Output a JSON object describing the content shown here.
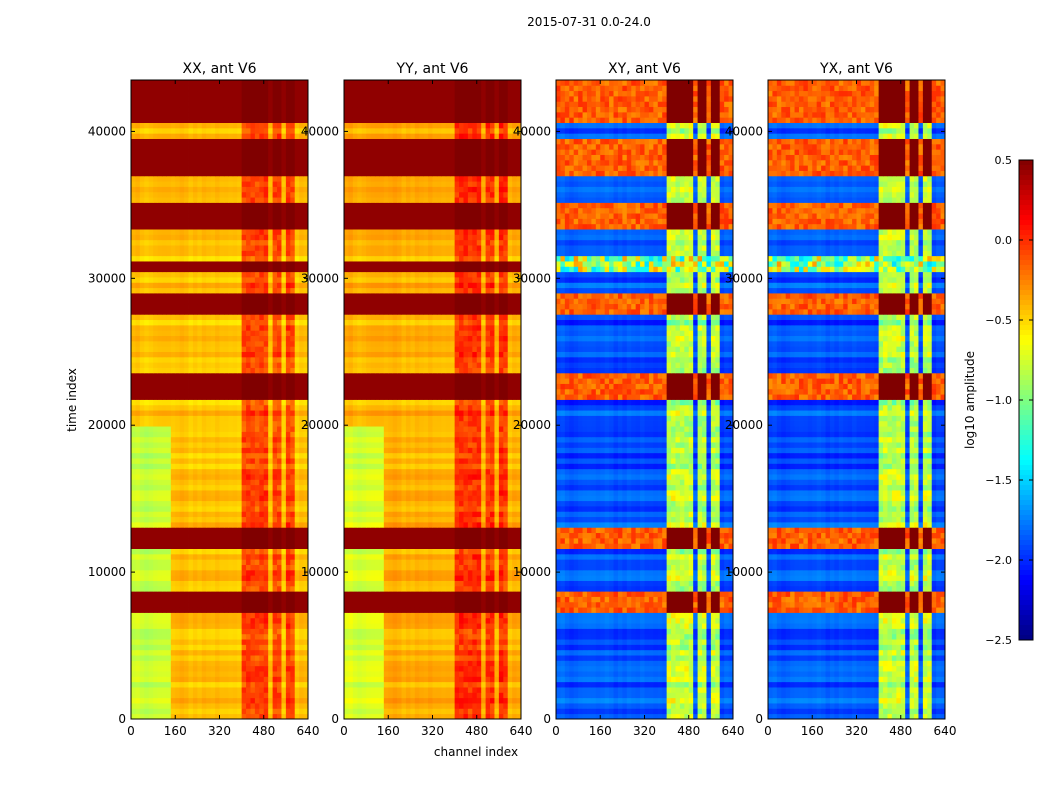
{
  "figure": {
    "suptitle": "2015-07-31 0.0-24.0"
  },
  "chart_data": {
    "type": "heatmap",
    "title": "2015-07-31 0.0-24.0",
    "xlabel": "channel index",
    "ylabel": "time index",
    "x_range": [
      0,
      640
    ],
    "y_range": [
      0,
      43500
    ],
    "x_ticks": [
      0,
      160,
      320,
      480,
      640
    ],
    "y_ticks": [
      0,
      10000,
      20000,
      30000,
      40000
    ],
    "x_tick_labels": [
      "0",
      "160",
      "320",
      "480",
      "640"
    ],
    "y_tick_labels": [
      "0",
      "10000",
      "20000",
      "30000",
      "40000"
    ],
    "panels": [
      {
        "title": "XX, ant V6",
        "pol": "XX",
        "base_level": -0.45,
        "variant": "parallel"
      },
      {
        "title": "YY, ant V6",
        "pol": "YY",
        "base_level": -0.4,
        "variant": "parallel"
      },
      {
        "title": "XY, ant V6",
        "pol": "XY",
        "base_level": -1.9,
        "variant": "cross"
      },
      {
        "title": "YX, ant V6",
        "pol": "YX",
        "base_level": -1.9,
        "variant": "cross"
      }
    ],
    "rfi_channel_bands": [
      [
        405,
        445
      ],
      [
        455,
        495
      ],
      [
        505,
        545
      ],
      [
        555,
        595
      ]
    ],
    "bright_time_bands": [
      [
        7300,
        8800
      ],
      [
        11500,
        13200
      ],
      [
        21800,
        23500
      ],
      [
        27500,
        29000
      ],
      [
        30300,
        31300
      ],
      [
        33500,
        35000
      ],
      [
        37000,
        39500
      ],
      [
        40500,
        43500
      ]
    ],
    "noisy_time_band": [
      30300,
      31400
    ],
    "colorbar": {
      "label": "log10 amplitude",
      "range": [
        -2.5,
        0.5
      ],
      "ticks": [
        0.5,
        0.0,
        -0.5,
        -1.0,
        -1.5,
        -2.0,
        -2.5
      ],
      "tick_labels": [
        "0.5",
        "0.0",
        "−0.5",
        "−1.0",
        "−1.5",
        "−2.0",
        "−2.5"
      ],
      "colormap": "jet"
    }
  },
  "colors": {
    "axis": "#000000",
    "background": "#ffffff"
  }
}
